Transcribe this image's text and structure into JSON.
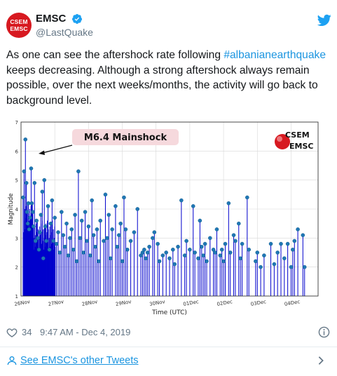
{
  "tweet": {
    "avatar_line1": "CSEM",
    "avatar_line2": "EMSC",
    "display_name": "EMSC",
    "handle": "@LastQuake",
    "text_before": "As one can see the aftershock rate following ",
    "hashtag": "#albanianearthquake",
    "text_after": " keeps decreasing. Although a strong aftershock always remain possible, over the next weeks/months, the activity will go back to background level.",
    "likes": "34",
    "timestamp": "9:47 AM - Dec 4, 2019",
    "footer_link": "See EMSC's other Tweets"
  },
  "icons": {
    "verified": "verified-badge-icon",
    "twitter": "twitter-bird-icon",
    "heart": "heart-icon",
    "info": "info-icon",
    "person": "person-icon",
    "chevron": "chevron-right-icon"
  },
  "colors": {
    "accent": "#1b95e0",
    "stem": "#0000cc",
    "marker": "#1f77b4",
    "brand_red": "#d71920"
  },
  "chart_data": {
    "type": "scatter",
    "style": "stem",
    "xlabel": "Time (UTC)",
    "ylabel": "Magnitude",
    "xlim": [
      0,
      8.8
    ],
    "ylim": [
      1,
      7
    ],
    "ytick_labels": [
      "1",
      "2",
      "3",
      "4",
      "5",
      "6",
      "7"
    ],
    "xticks": [
      0,
      1,
      2,
      3,
      4,
      5,
      6,
      7,
      8
    ],
    "xtick_labels": [
      "26Nov",
      "27Nov",
      "28Nov",
      "29Nov",
      "30Nov",
      "01Dec",
      "02Dec",
      "03Dec",
      "04Dec"
    ],
    "grid": true,
    "annotation": "M6.4 Mainshock",
    "logo_line1": "CSEM",
    "logo_line2": "EMSC",
    "x_unit": "days since 26 Nov 2019 00:00 UTC",
    "points": [
      [
        0.06,
        4.4
      ],
      [
        0.09,
        5.3
      ],
      [
        0.13,
        6.4
      ],
      [
        0.16,
        4.9
      ],
      [
        0.18,
        3.9
      ],
      [
        0.2,
        3.5
      ],
      [
        0.22,
        4.2
      ],
      [
        0.24,
        3.3
      ],
      [
        0.27,
        3.7
      ],
      [
        0.3,
        5.4
      ],
      [
        0.32,
        4.2
      ],
      [
        0.35,
        3.9
      ],
      [
        0.37,
        3.4
      ],
      [
        0.4,
        4.9
      ],
      [
        0.43,
        2.9
      ],
      [
        0.46,
        3.6
      ],
      [
        0.5,
        3.0
      ],
      [
        0.53,
        2.6
      ],
      [
        0.56,
        3.2
      ],
      [
        0.59,
        3.8
      ],
      [
        0.63,
        4.6
      ],
      [
        0.66,
        2.3
      ],
      [
        0.69,
        5.0
      ],
      [
        0.72,
        3.4
      ],
      [
        0.75,
        2.9
      ],
      [
        0.8,
        4.1
      ],
      [
        0.84,
        2.6
      ],
      [
        0.88,
        3.5
      ],
      [
        0.92,
        4.3
      ],
      [
        0.96,
        2.9
      ],
      [
        1.0,
        3.7
      ],
      [
        1.05,
        2.8
      ],
      [
        1.1,
        3.2
      ],
      [
        1.15,
        2.5
      ],
      [
        1.2,
        3.9
      ],
      [
        1.25,
        3.1
      ],
      [
        1.3,
        2.7
      ],
      [
        1.35,
        3.5
      ],
      [
        1.4,
        2.4
      ],
      [
        1.45,
        3.0
      ],
      [
        1.5,
        3.3
      ],
      [
        1.55,
        2.6
      ],
      [
        1.6,
        3.8
      ],
      [
        1.65,
        2.2
      ],
      [
        1.7,
        5.3
      ],
      [
        1.75,
        3.0
      ],
      [
        1.8,
        3.6
      ],
      [
        1.85,
        2.5
      ],
      [
        1.9,
        3.9
      ],
      [
        1.95,
        2.9
      ],
      [
        2.0,
        3.4
      ],
      [
        2.05,
        2.4
      ],
      [
        2.1,
        4.3
      ],
      [
        2.15,
        3.1
      ],
      [
        2.2,
        2.7
      ],
      [
        2.25,
        3.3
      ],
      [
        2.3,
        2.2
      ],
      [
        2.35,
        3.6
      ],
      [
        2.45,
        2.9
      ],
      [
        2.5,
        4.5
      ],
      [
        2.55,
        3.0
      ],
      [
        2.6,
        3.8
      ],
      [
        2.65,
        2.3
      ],
      [
        2.7,
        3.3
      ],
      [
        2.8,
        4.1
      ],
      [
        2.85,
        2.7
      ],
      [
        2.9,
        3.1
      ],
      [
        2.95,
        3.5
      ],
      [
        3.0,
        2.2
      ],
      [
        3.05,
        4.4
      ],
      [
        3.1,
        3.3
      ],
      [
        3.15,
        2.6
      ],
      [
        3.25,
        2.9
      ],
      [
        3.35,
        3.2
      ],
      [
        3.45,
        4.0
      ],
      [
        3.55,
        2.4
      ],
      [
        3.6,
        2.5
      ],
      [
        3.65,
        2.6
      ],
      [
        3.7,
        2.3
      ],
      [
        3.75,
        2.5
      ],
      [
        3.8,
        2.7
      ],
      [
        3.9,
        3.0
      ],
      [
        3.95,
        3.2
      ],
      [
        4.05,
        2.8
      ],
      [
        4.1,
        2.2
      ],
      [
        4.2,
        2.4
      ],
      [
        4.3,
        2.5
      ],
      [
        4.4,
        2.3
      ],
      [
        4.5,
        2.6
      ],
      [
        4.55,
        2.1
      ],
      [
        4.65,
        2.7
      ],
      [
        4.75,
        4.3
      ],
      [
        4.85,
        2.4
      ],
      [
        4.9,
        2.9
      ],
      [
        5.0,
        2.6
      ],
      [
        5.1,
        4.1
      ],
      [
        5.15,
        2.5
      ],
      [
        5.25,
        2.3
      ],
      [
        5.3,
        3.6
      ],
      [
        5.35,
        2.7
      ],
      [
        5.4,
        2.4
      ],
      [
        5.45,
        2.8
      ],
      [
        5.5,
        2.2
      ],
      [
        5.6,
        3.0
      ],
      [
        5.7,
        2.6
      ],
      [
        5.75,
        2.5
      ],
      [
        5.8,
        3.3
      ],
      [
        5.9,
        2.4
      ],
      [
        5.95,
        2.6
      ],
      [
        6.0,
        2.2
      ],
      [
        6.05,
        2.8
      ],
      [
        6.15,
        4.2
      ],
      [
        6.2,
        2.5
      ],
      [
        6.3,
        3.1
      ],
      [
        6.35,
        2.9
      ],
      [
        6.45,
        3.5
      ],
      [
        6.5,
        2.3
      ],
      [
        6.55,
        2.8
      ],
      [
        6.7,
        4.4
      ],
      [
        6.75,
        2.6
      ],
      [
        6.95,
        2.2
      ],
      [
        7.0,
        2.5
      ],
      [
        7.1,
        2.0
      ],
      [
        7.2,
        2.4
      ],
      [
        7.4,
        2.8
      ],
      [
        7.5,
        2.1
      ],
      [
        7.6,
        2.5
      ],
      [
        7.7,
        2.8
      ],
      [
        7.8,
        2.3
      ],
      [
        7.9,
        2.8
      ],
      [
        8.0,
        2.0
      ],
      [
        8.05,
        2.6
      ],
      [
        8.1,
        2.9
      ],
      [
        8.2,
        3.3
      ],
      [
        8.35,
        3.1
      ],
      [
        8.4,
        2.0
      ]
    ]
  }
}
